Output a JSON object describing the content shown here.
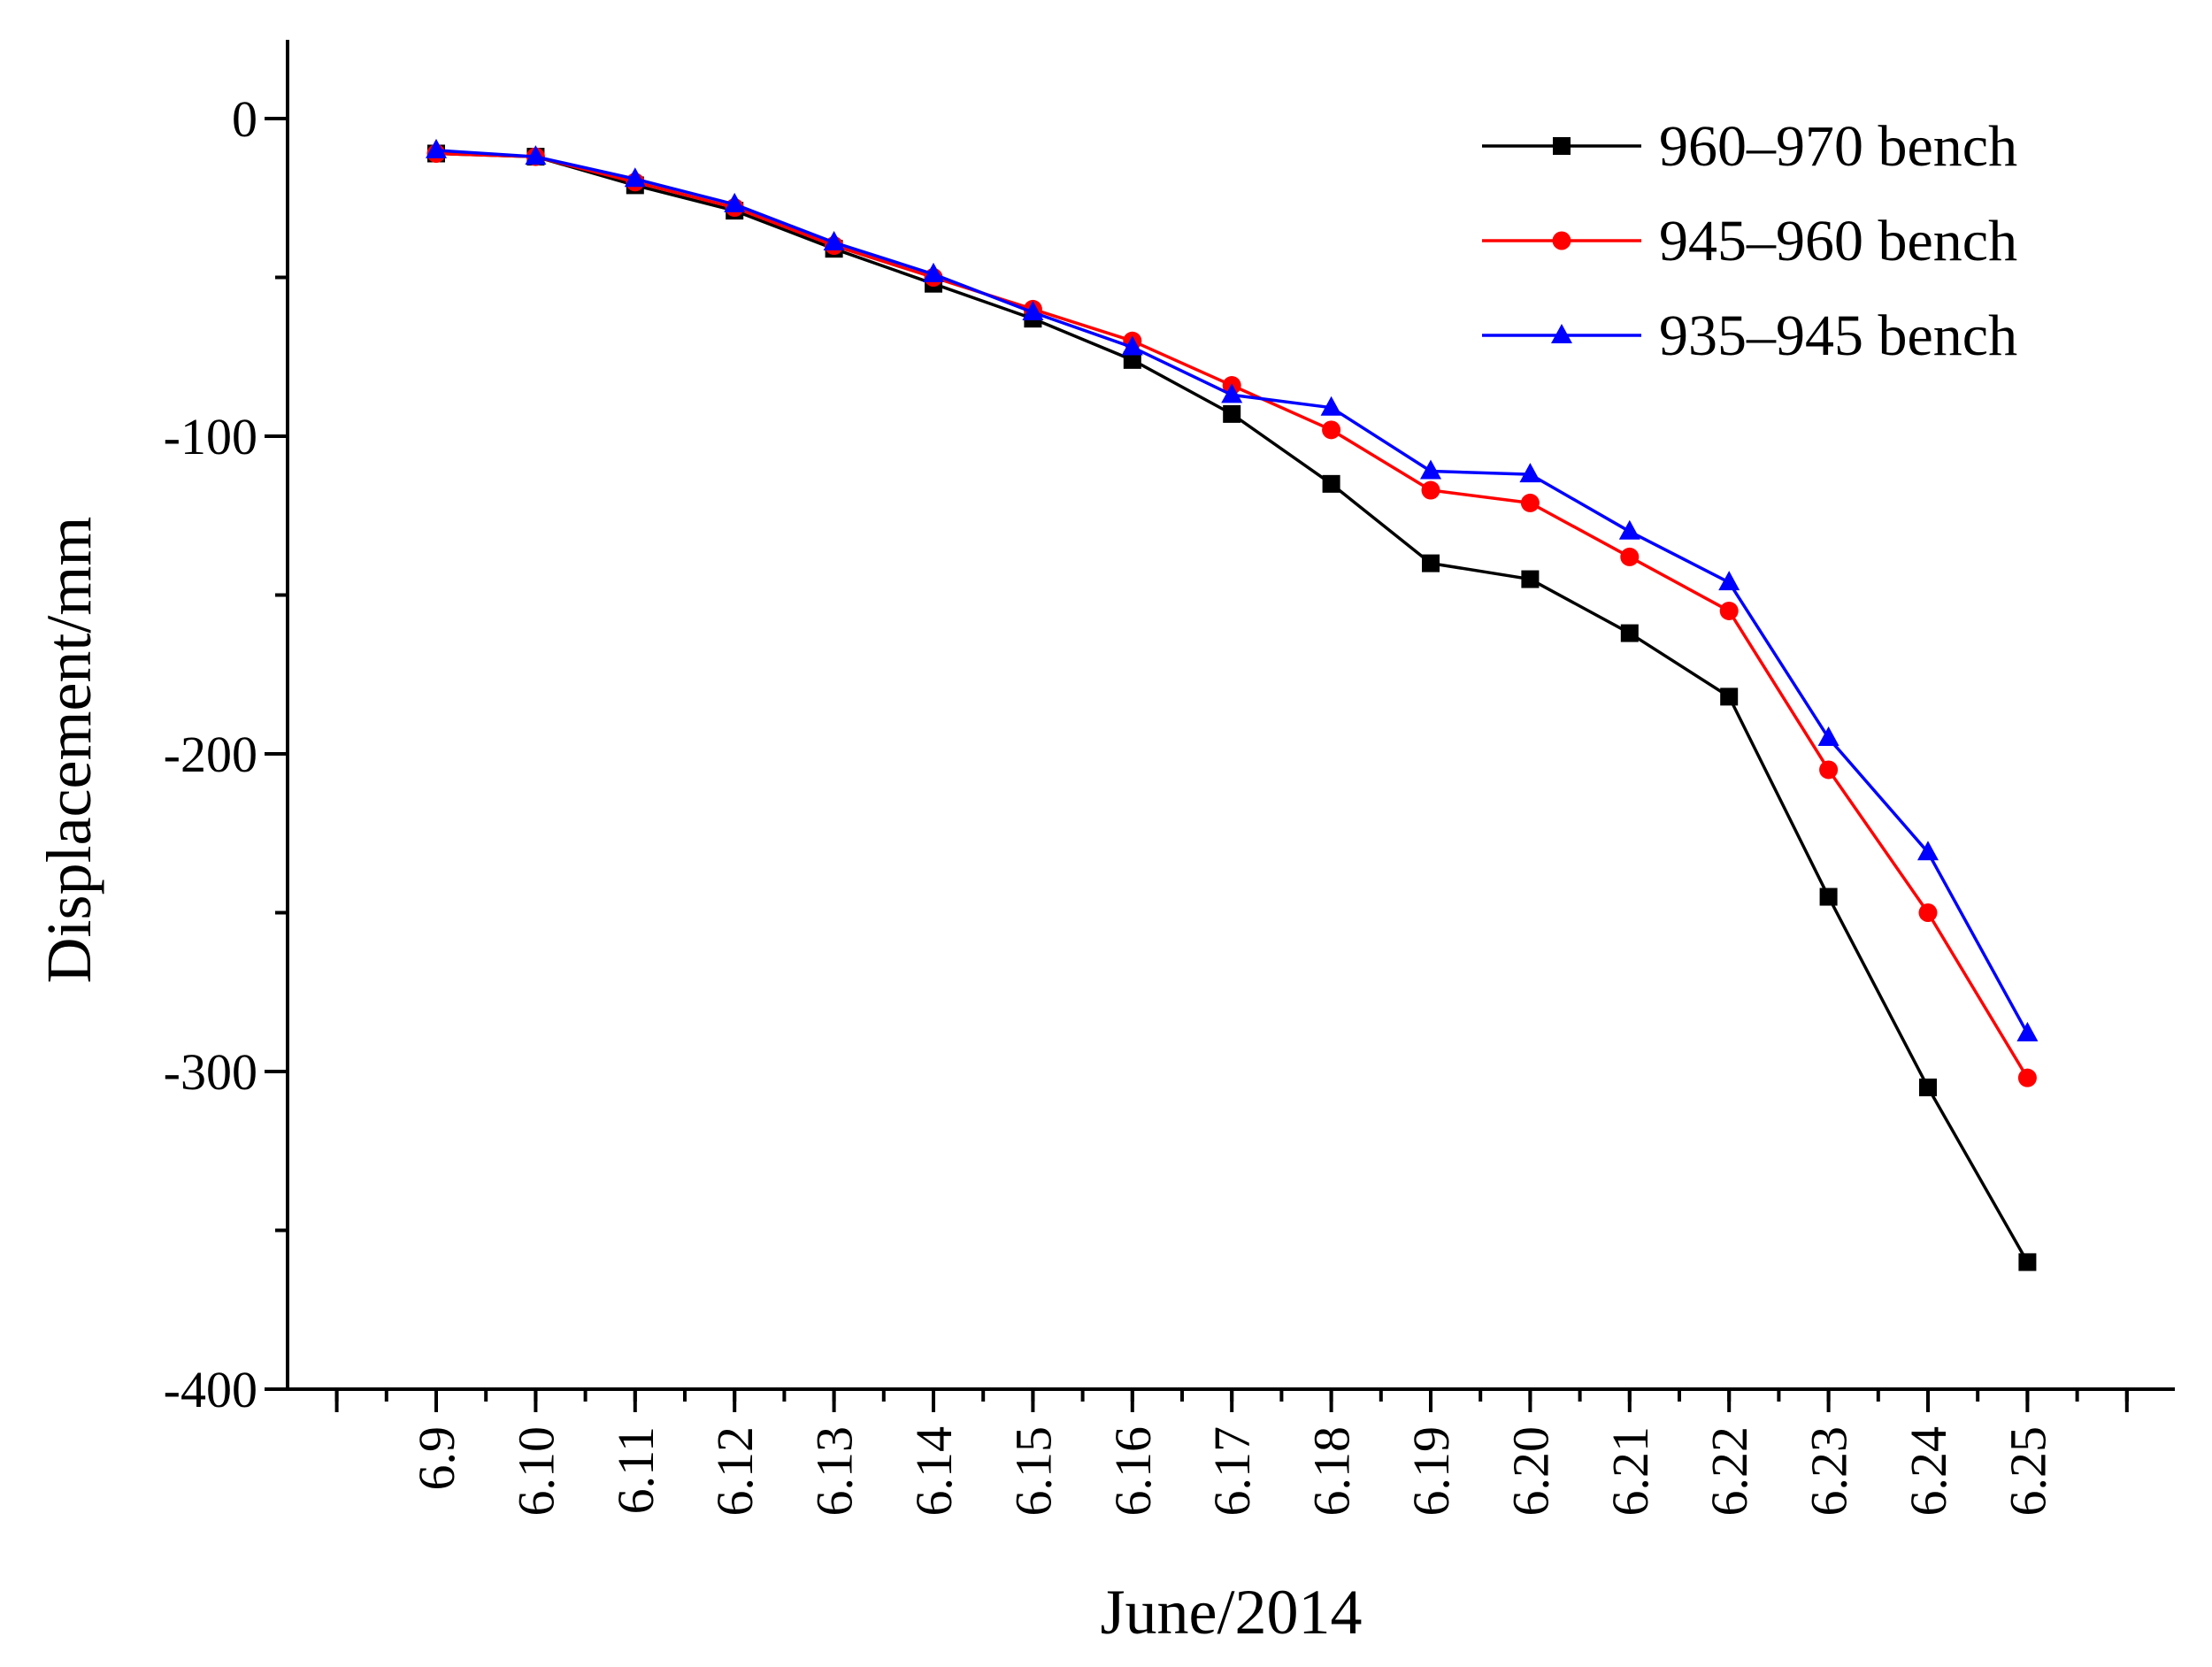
{
  "chart_data": {
    "type": "line",
    "title": "",
    "xlabel": "June/2014",
    "ylabel": "Displacement/mm",
    "categories": [
      "6.9",
      "6.10",
      "6.11",
      "6.12",
      "6.13",
      "6.14",
      "6.15",
      "6.16",
      "6.17",
      "6.18",
      "6.19",
      "6.20",
      "6.21",
      "6.22",
      "6.23",
      "6.24",
      "6.25"
    ],
    "ylim": [
      -400,
      25
    ],
    "yticks": [
      "0",
      "-100",
      "-200",
      "-300",
      "-400"
    ],
    "grid": false,
    "legend_position": "top-right",
    "series": [
      {
        "name": "960–970 bench",
        "color": "#000000",
        "marker": "square",
        "values": [
          -11,
          -12,
          -21,
          -29,
          -41,
          -52,
          -63,
          -76,
          -93,
          -115,
          -140,
          -145,
          -162,
          -182,
          -245,
          -305,
          -360
        ]
      },
      {
        "name": "945–960 bench",
        "color": "#ff0000",
        "marker": "circle",
        "values": [
          -11,
          -12,
          -20,
          -28,
          -40,
          -50,
          -60,
          -70,
          -84,
          -98,
          -117,
          -121,
          -138,
          -155,
          -205,
          -250,
          -302
        ]
      },
      {
        "name": "935–945 bench",
        "color": "#0000ff",
        "marker": "triangle",
        "values": [
          -10,
          -12,
          -19,
          -27,
          -39,
          -49,
          -61,
          -72,
          -87,
          -91,
          -111,
          -112,
          -130,
          -146,
          -195,
          -231,
          -288
        ]
      }
    ]
  }
}
